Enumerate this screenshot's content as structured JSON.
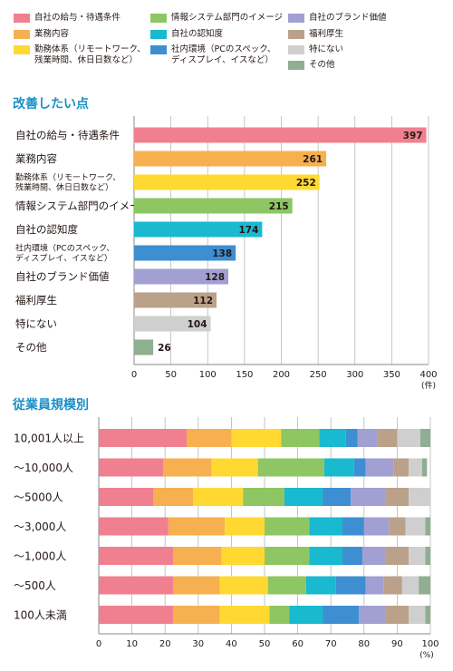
{
  "legend": {
    "items": [
      {
        "label": "自社の給与・待遇条件",
        "color": "#f08090"
      },
      {
        "label": "業務内容",
        "color": "#f7b04f"
      },
      {
        "label": "勤務体系（リモートワーク、\n残業時間、休日日数など）",
        "color": "#ffd932"
      },
      {
        "label": "情報システム部門のイメージ",
        "color": "#8dc663"
      },
      {
        "label": "自社の認知度",
        "color": "#19b9d0"
      },
      {
        "label": "社内環境（PCのスペック、\nディスプレイ、イスなど）",
        "color": "#3d8fd2"
      },
      {
        "label": "自社のブランド価値",
        "color": "#a29fd2"
      },
      {
        "label": "福利厚生",
        "color": "#bba18a"
      },
      {
        "label": "特にない",
        "color": "#cfcfcf"
      },
      {
        "label": "その他",
        "color": "#8fae92"
      }
    ]
  },
  "section1": {
    "title": "改善したい点"
  },
  "section2": {
    "title": "従業員規模別"
  },
  "chart_data": [
    {
      "type": "bar",
      "orientation": "horizontal",
      "categories": [
        "自社の給与・待遇条件",
        "業務内容",
        "勤務体系（リモートワーク、\n残業時間、休日日数など）",
        "情報システム部門のイメージ",
        "自社の認知度",
        "社内環境（PCのスペック、\nディスプレイ、イスなど）",
        "自社のブランド価値",
        "福利厚生",
        "特にない",
        "その他"
      ],
      "values": [
        397,
        261,
        252,
        215,
        174,
        138,
        128,
        112,
        104,
        26
      ],
      "colors": [
        "#f08090",
        "#f7b04f",
        "#ffd932",
        "#8dc663",
        "#19b9d0",
        "#3d8fd2",
        "#a29fd2",
        "#bba18a",
        "#cfcfcf",
        "#8fae92"
      ],
      "xlim": [
        0,
        400
      ],
      "xticks": [
        0,
        50,
        100,
        150,
        200,
        250,
        300,
        350,
        400
      ],
      "xunit": "(件)"
    },
    {
      "type": "bar",
      "orientation": "horizontal",
      "stacked": true,
      "categories": [
        "10,001人以上",
        "～10,000人",
        "～5000人",
        "～3,000人",
        "～1,000人",
        "～500人",
        "100人未満"
      ],
      "series": [
        {
          "name": "自社の給与・待遇条件",
          "color": "#f08090",
          "values": [
            26.5,
            19.5,
            16.5,
            21,
            22.5,
            22.5,
            22.5
          ]
        },
        {
          "name": "業務内容",
          "color": "#f7b04f",
          "values": [
            13.5,
            14.5,
            12,
            17,
            14.5,
            14,
            14
          ]
        },
        {
          "name": "勤務体系（リモートワーク、残業時間、休日日数など）",
          "color": "#ffd932",
          "values": [
            15,
            14,
            15,
            12,
            13,
            14.5,
            15
          ]
        },
        {
          "name": "情報システム部門のイメージ",
          "color": "#8dc663",
          "values": [
            11.5,
            20,
            12.5,
            13.5,
            13.5,
            11.5,
            6
          ]
        },
        {
          "name": "自社の認知度",
          "color": "#19b9d0",
          "values": [
            8,
            9,
            11.5,
            10,
            10,
            9,
            10
          ]
        },
        {
          "name": "社内環境（PCのスペック、ディスプレイ、イスなど）",
          "color": "#3d8fd2",
          "values": [
            3.5,
            3.5,
            8.5,
            6.5,
            6,
            9,
            11
          ]
        },
        {
          "name": "自社のブランド価値",
          "color": "#a29fd2",
          "values": [
            6,
            8.5,
            10.5,
            7.5,
            7,
            5.5,
            8
          ]
        },
        {
          "name": "福利厚生",
          "color": "#bba18a",
          "values": [
            6,
            4.5,
            7,
            5,
            7,
            5.5,
            7
          ]
        },
        {
          "name": "特にない",
          "color": "#cfcfcf",
          "values": [
            7,
            4,
            6.5,
            6,
            5,
            5,
            5
          ]
        },
        {
          "name": "その他",
          "color": "#8fae92",
          "values": [
            3,
            1.5,
            0,
            1.5,
            1.5,
            3.5,
            1.5
          ]
        }
      ],
      "xlim": [
        0,
        100
      ],
      "xticks": [
        0,
        10,
        20,
        30,
        40,
        50,
        60,
        70,
        80,
        90,
        100
      ],
      "xunit": "(%)"
    }
  ]
}
